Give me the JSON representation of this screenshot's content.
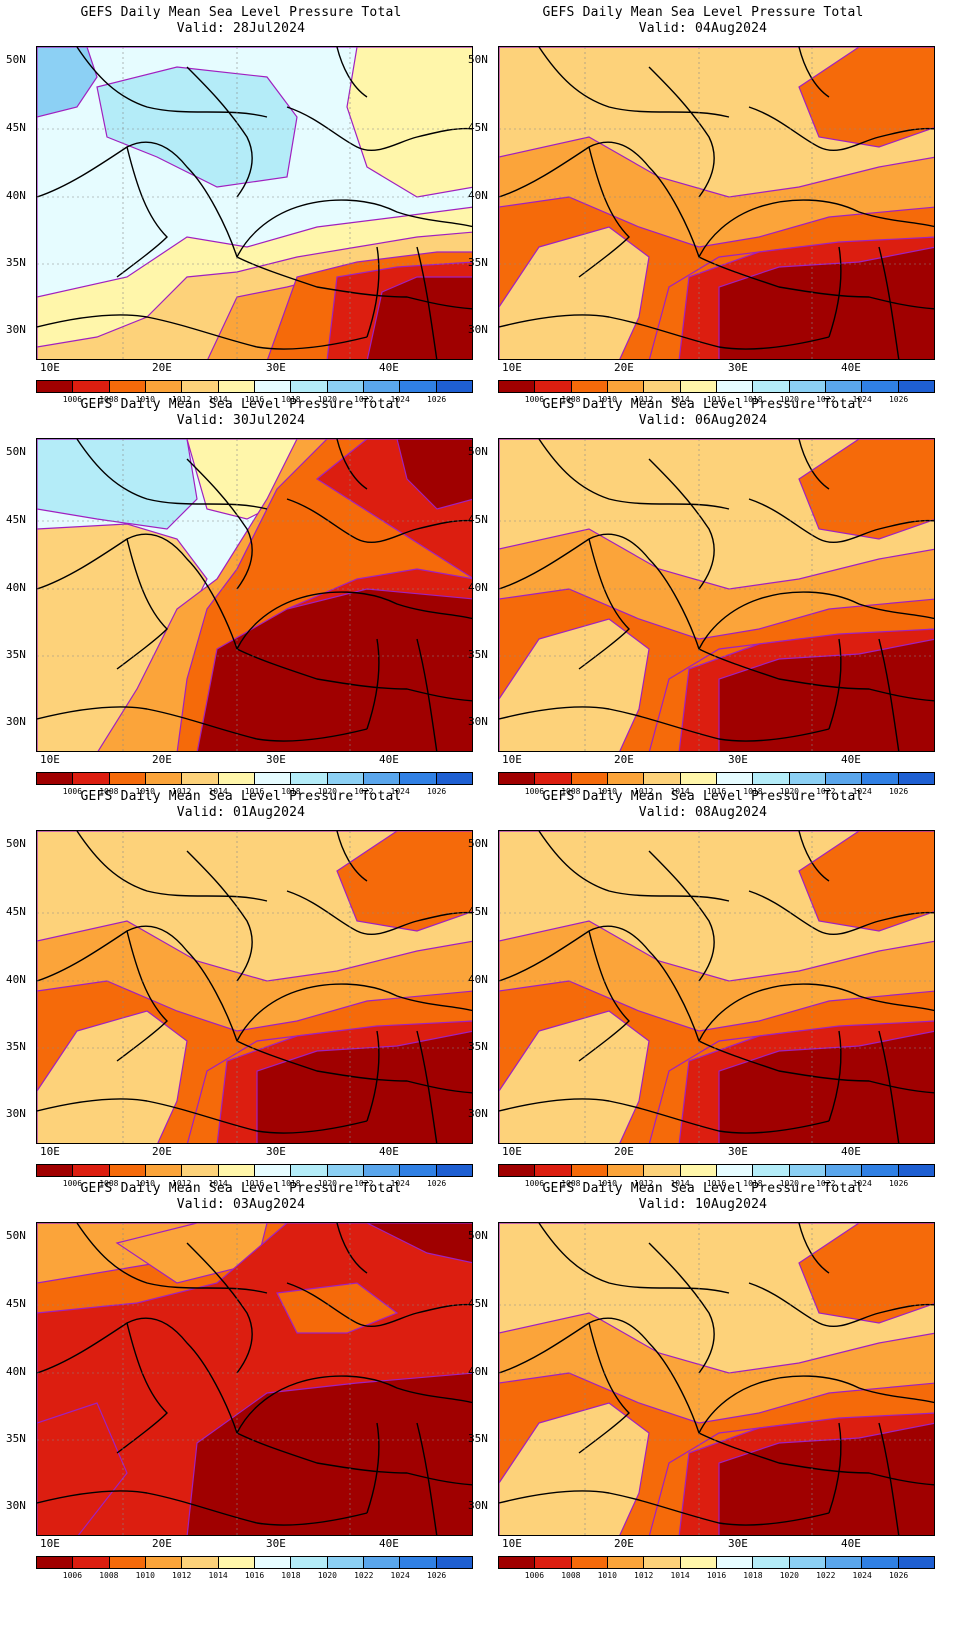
{
  "figure": {
    "panels": [
      {
        "title": "GEFS Daily Mean Sea Level Pressure Total",
        "valid": "Valid: 28Jul2024",
        "scheme": "cool"
      },
      {
        "title": "GEFS Daily Mean Sea Level Pressure Total",
        "valid": "Valid: 04Aug2024",
        "scheme": "warm"
      },
      {
        "title": "GEFS Daily Mean Sea Level Pressure Total",
        "valid": "Valid: 30Jul2024",
        "scheme": "mixed"
      },
      {
        "title": "GEFS Daily Mean Sea Level Pressure Total",
        "valid": "Valid: 06Aug2024",
        "scheme": "warm"
      },
      {
        "title": "GEFS Daily Mean Sea Level Pressure Total",
        "valid": "Valid: 01Aug2024",
        "scheme": "warm"
      },
      {
        "title": "GEFS Daily Mean Sea Level Pressure Total",
        "valid": "Valid: 08Aug2024",
        "scheme": "warm"
      },
      {
        "title": "GEFS Daily Mean Sea Level Pressure Total",
        "valid": "Valid: 03Aug2024",
        "scheme": "hot"
      },
      {
        "title": "GEFS Daily Mean Sea Level Pressure Total",
        "valid": "Valid: 10Aug2024",
        "scheme": "warm"
      }
    ],
    "lat_labels": [
      "50N",
      "45N",
      "40N",
      "35N",
      "30N"
    ],
    "lon_labels": [
      "10E",
      "20E",
      "30E",
      "40E"
    ],
    "colorbar": {
      "labels": [
        "1006",
        "1008",
        "1010",
        "1012",
        "1014",
        "1016",
        "1018",
        "1020",
        "1022",
        "1024",
        "1026"
      ],
      "colors": [
        "#a00000",
        "#dc1e10",
        "#f56a0a",
        "#fba43a",
        "#fdd27a",
        "#fff6aa",
        "#e6fcff",
        "#b4ecf8",
        "#8cd0f4",
        "#5aa6ec",
        "#3080e4",
        "#1e5fd2"
      ]
    },
    "contour_color": "#a020c0",
    "map_outline_color": "#000000"
  }
}
